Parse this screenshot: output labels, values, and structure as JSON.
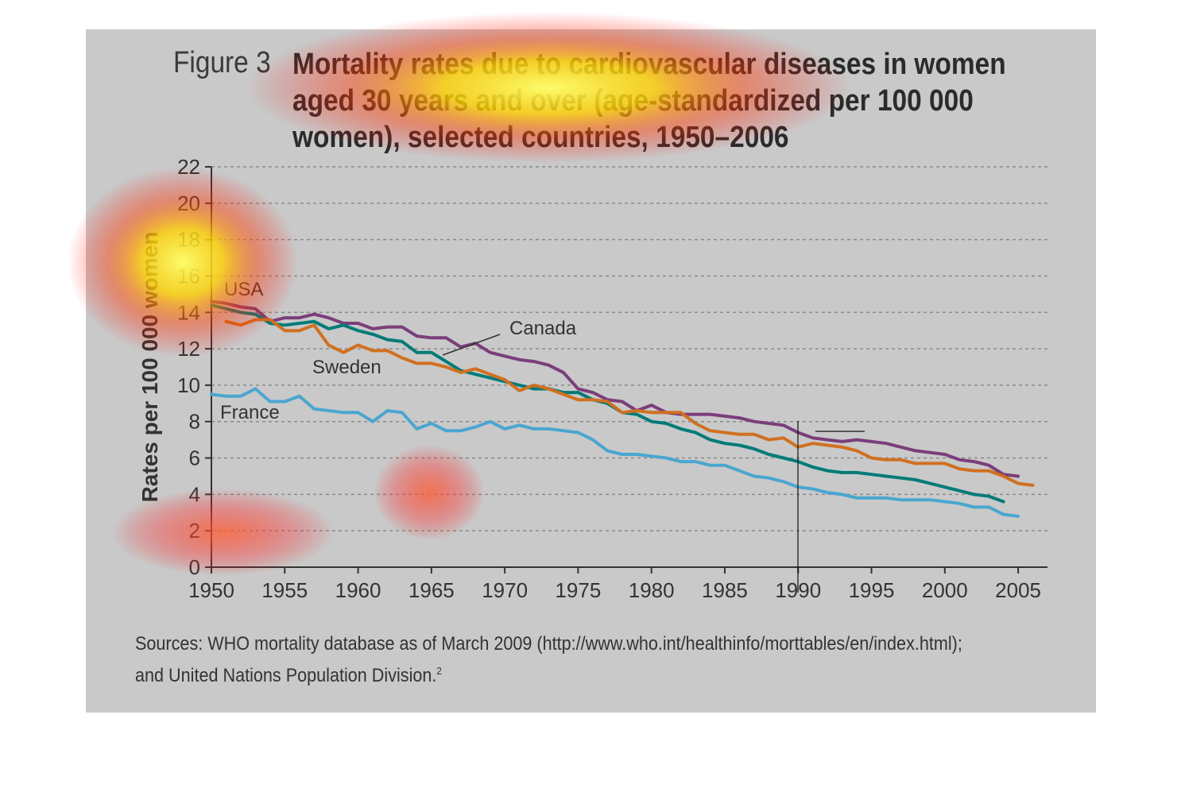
{
  "figure": {
    "label": "Figure 3",
    "title": "Mortality rates due to cardiovascular diseases in women aged 30 years and over (age-standardized per 100 000 women), selected countries, 1950–2006",
    "source_line1": "Sources: WHO mortality database as of March 2009 (http://www.who.int/healthinfo/morttables/en/index.html);",
    "source_line2": "and United Nations Population Division.",
    "source_footnote": "2"
  },
  "chart_data": {
    "type": "line",
    "title": "Mortality rates due to cardiovascular diseases in women aged 30 years and over (age-standardized per 100 000 women), selected countries, 1950–2006",
    "xlabel": "",
    "ylabel": "Rates per 100 000 women",
    "xlim": [
      1950,
      2007
    ],
    "ylim": [
      0,
      22
    ],
    "x_ticks": [
      "1950",
      "1955",
      "1960",
      "1965",
      "1970",
      "1975",
      "1980",
      "1985",
      "1990",
      "1995",
      "2000",
      "2005"
    ],
    "y_ticks": [
      "0",
      "2",
      "4",
      "6",
      "8",
      "10",
      "12",
      "14",
      "16",
      "18",
      "20",
      "22"
    ],
    "grid": "horizontal dashed",
    "series": [
      {
        "name": "USA",
        "color": "#7a3e7a",
        "x": [
          1950,
          1951,
          1952,
          1953,
          1954,
          1955,
          1956,
          1957,
          1958,
          1959,
          1960,
          1961,
          1962,
          1963,
          1964,
          1965,
          1966,
          1967,
          1968,
          1969,
          1970,
          1971,
          1972,
          1973,
          1974,
          1975,
          1976,
          1977,
          1978,
          1979,
          1980,
          1981,
          1982,
          1983,
          1984,
          1985,
          1986,
          1987,
          1988,
          1989,
          1990,
          1991,
          1992,
          1993,
          1994,
          1995,
          1996,
          1997,
          1998,
          1999,
          2000,
          2001,
          2002,
          2003,
          2004,
          2005
        ],
        "y": [
          14.6,
          14.5,
          14.3,
          14.2,
          13.5,
          13.7,
          13.7,
          13.9,
          13.7,
          13.4,
          13.4,
          13.1,
          13.2,
          13.2,
          12.7,
          12.6,
          12.6,
          12.1,
          12.3,
          11.8,
          11.6,
          11.4,
          11.3,
          11.1,
          10.7,
          9.8,
          9.6,
          9.2,
          9.1,
          8.6,
          8.9,
          8.5,
          8.4,
          8.4,
          8.4,
          8.3,
          8.2,
          8.0,
          7.9,
          7.8,
          7.4,
          7.1,
          7.0,
          6.9,
          7.0,
          6.9,
          6.8,
          6.6,
          6.4,
          6.3,
          6.2,
          5.9,
          5.8,
          5.6,
          5.1,
          5.0
        ]
      },
      {
        "name": "Canada",
        "color": "#007b78",
        "x": [
          1950,
          1951,
          1952,
          1953,
          1954,
          1955,
          1956,
          1957,
          1958,
          1959,
          1960,
          1961,
          1962,
          1963,
          1964,
          1965,
          1966,
          1967,
          1968,
          1969,
          1970,
          1971,
          1972,
          1973,
          1974,
          1975,
          1976,
          1977,
          1978,
          1979,
          1980,
          1981,
          1982,
          1983,
          1984,
          1985,
          1986,
          1987,
          1988,
          1989,
          1990,
          1991,
          1992,
          1993,
          1994,
          1995,
          1996,
          1997,
          1998,
          1999,
          2000,
          2001,
          2002,
          2003,
          2004
        ],
        "y": [
          14.4,
          14.2,
          14.0,
          13.9,
          13.4,
          13.3,
          13.4,
          13.5,
          13.1,
          13.3,
          13.0,
          12.8,
          12.5,
          12.4,
          11.8,
          11.8,
          11.3,
          10.8,
          10.6,
          10.4,
          10.2,
          10.0,
          9.8,
          9.8,
          9.6,
          9.6,
          9.2,
          9.0,
          8.5,
          8.4,
          8.0,
          7.9,
          7.6,
          7.4,
          7.0,
          6.8,
          6.7,
          6.5,
          6.2,
          6.0,
          5.8,
          5.5,
          5.3,
          5.2,
          5.2,
          5.1,
          5.0,
          4.9,
          4.8,
          4.6,
          4.4,
          4.2,
          4.0,
          3.9,
          3.6
        ]
      },
      {
        "name": "Sweden",
        "color": "#d07020",
        "x": [
          1951,
          1952,
          1953,
          1954,
          1955,
          1956,
          1957,
          1958,
          1959,
          1960,
          1961,
          1962,
          1963,
          1964,
          1965,
          1966,
          1967,
          1968,
          1969,
          1970,
          1971,
          1972,
          1973,
          1974,
          1975,
          1976,
          1977,
          1978,
          1979,
          1980,
          1981,
          1982,
          1983,
          1984,
          1985,
          1986,
          1987,
          1988,
          1989,
          1990,
          1991,
          1992,
          1993,
          1994,
          1995,
          1996,
          1997,
          1998,
          1999,
          2000,
          2001,
          2002,
          2003,
          2004,
          2005,
          2006
        ],
        "y": [
          13.5,
          13.3,
          13.6,
          13.6,
          13.0,
          13.0,
          13.3,
          12.2,
          11.8,
          12.2,
          11.9,
          11.9,
          11.5,
          11.2,
          11.2,
          11.0,
          10.7,
          10.9,
          10.6,
          10.3,
          9.7,
          10.0,
          9.8,
          9.5,
          9.2,
          9.2,
          9.1,
          8.5,
          8.6,
          8.5,
          8.5,
          8.5,
          7.9,
          7.5,
          7.4,
          7.3,
          7.3,
          7.0,
          7.1,
          6.6,
          6.8,
          6.7,
          6.6,
          6.4,
          6.0,
          5.9,
          5.9,
          5.7,
          5.7,
          5.7,
          5.4,
          5.3,
          5.3,
          5.0,
          4.6,
          4.5
        ]
      },
      {
        "name": "France",
        "color": "#4aa6d0",
        "x": [
          1950,
          1951,
          1952,
          1953,
          1954,
          1955,
          1956,
          1957,
          1958,
          1959,
          1960,
          1961,
          1962,
          1963,
          1964,
          1965,
          1966,
          1967,
          1968,
          1969,
          1970,
          1971,
          1972,
          1973,
          1974,
          1975,
          1976,
          1977,
          1978,
          1979,
          1980,
          1981,
          1982,
          1983,
          1984,
          1985,
          1986,
          1987,
          1988,
          1989,
          1990,
          1991,
          1992,
          1993,
          1994,
          1995,
          1996,
          1997,
          1998,
          1999,
          2000,
          2001,
          2002,
          2003,
          2004,
          2005
        ],
        "y": [
          9.5,
          9.4,
          9.4,
          9.8,
          9.1,
          9.1,
          9.4,
          8.7,
          8.6,
          8.5,
          8.5,
          8.0,
          8.6,
          8.5,
          7.6,
          7.9,
          7.5,
          7.5,
          7.7,
          8.0,
          7.6,
          7.8,
          7.6,
          7.6,
          7.5,
          7.4,
          7.0,
          6.4,
          6.2,
          6.2,
          6.1,
          6.0,
          5.8,
          5.8,
          5.6,
          5.6,
          5.3,
          5.0,
          4.9,
          4.7,
          4.4,
          4.3,
          4.1,
          4.0,
          3.8,
          3.8,
          3.8,
          3.7,
          3.7,
          3.7,
          3.6,
          3.5,
          3.3,
          3.3,
          2.9,
          2.8
        ]
      }
    ],
    "series_labels": [
      "USA",
      "Canada",
      "Sweden",
      "France"
    ]
  }
}
